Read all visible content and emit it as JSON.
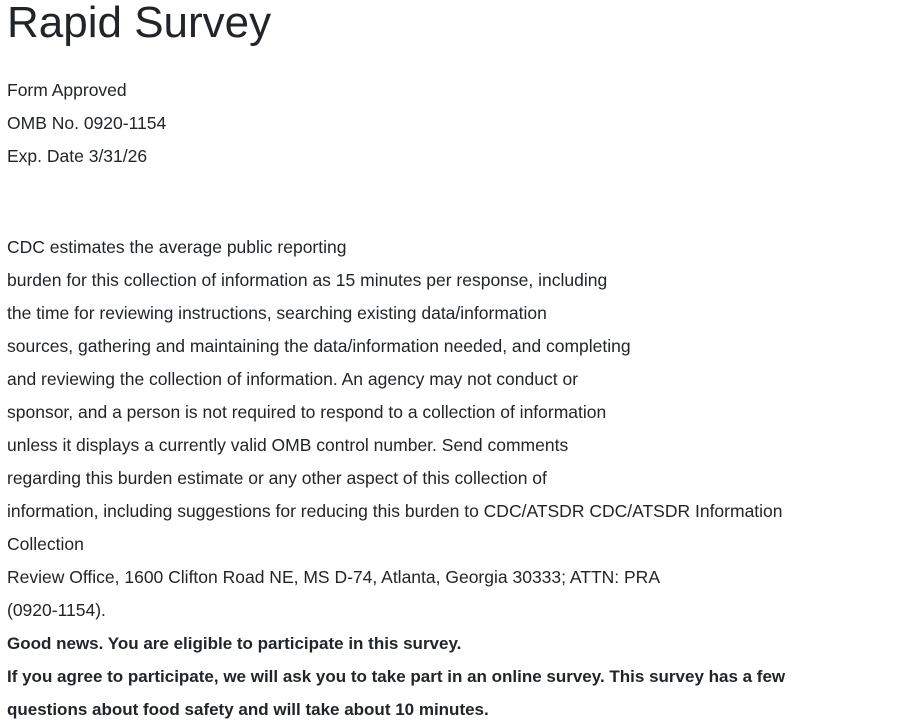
{
  "title": "Rapid Survey",
  "form_info": [
    "Form Approved",
    "OMB No. 0920-1154",
    "Exp. Date 3/31/26"
  ],
  "burden_statement": [
    "CDC estimates the average public reporting",
    "burden for this collection of information as 15 minutes per response, including",
    "the time for reviewing instructions, searching existing data/information",
    "sources, gathering and maintaining the data/information needed, and completing",
    "and reviewing the collection of information. An agency may not conduct or",
    "sponsor, and a person is not required to respond to a collection of information",
    "unless it displays a currently valid OMB control number. Send comments",
    "regarding this burden estimate or any other aspect of this collection of",
    "information, including suggestions for reducing this burden to CDC/ATSDR CDC/ATSDR Information",
    "Collection",
    "Review Office, 1600 Clifton Road NE, MS D-74, Atlanta, Georgia 30333; ATTN: PRA",
    "(0920-1154)."
  ],
  "eligibility": "Good news. You are eligible to participate in this survey.",
  "participation": [
    "If you agree to participate, we will ask you to take part in an online survey. This survey has a few",
    "questions about food safety and will take about 10 minutes."
  ]
}
